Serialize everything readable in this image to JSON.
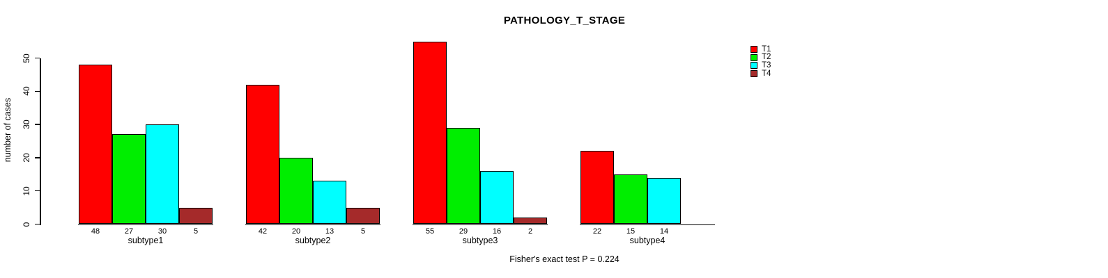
{
  "chart_data": {
    "type": "bar",
    "title": "PATHOLOGY_T_STAGE",
    "ylabel": "number of cases",
    "xlabel": "",
    "caption": "Fisher's exact test P = 0.224",
    "categories": [
      "subtype1",
      "subtype2",
      "subtype3",
      "subtype4"
    ],
    "series": [
      {
        "name": "T1",
        "color": "#ff0000",
        "values": [
          48,
          42,
          55,
          22
        ]
      },
      {
        "name": "T2",
        "color": "#00ee00",
        "values": [
          27,
          20,
          29,
          15
        ]
      },
      {
        "name": "T3",
        "color": "#00ffff",
        "values": [
          30,
          13,
          16,
          14
        ]
      },
      {
        "name": "T4",
        "color": "#a52a2a",
        "values": [
          5,
          5,
          2,
          0
        ]
      }
    ],
    "bar_value_labels": [
      [
        "48",
        "27",
        "30",
        "5"
      ],
      [
        "42",
        "20",
        "13",
        "5"
      ],
      [
        "55",
        "29",
        "16",
        "2"
      ],
      [
        "22",
        "15",
        "14",
        ""
      ]
    ],
    "yticks": [
      0,
      10,
      20,
      30,
      40,
      50
    ],
    "ylim": [
      0,
      55
    ],
    "grid": false,
    "legend_position": "top-right",
    "background_color": "#ffffff",
    "text_color": "#000000"
  }
}
